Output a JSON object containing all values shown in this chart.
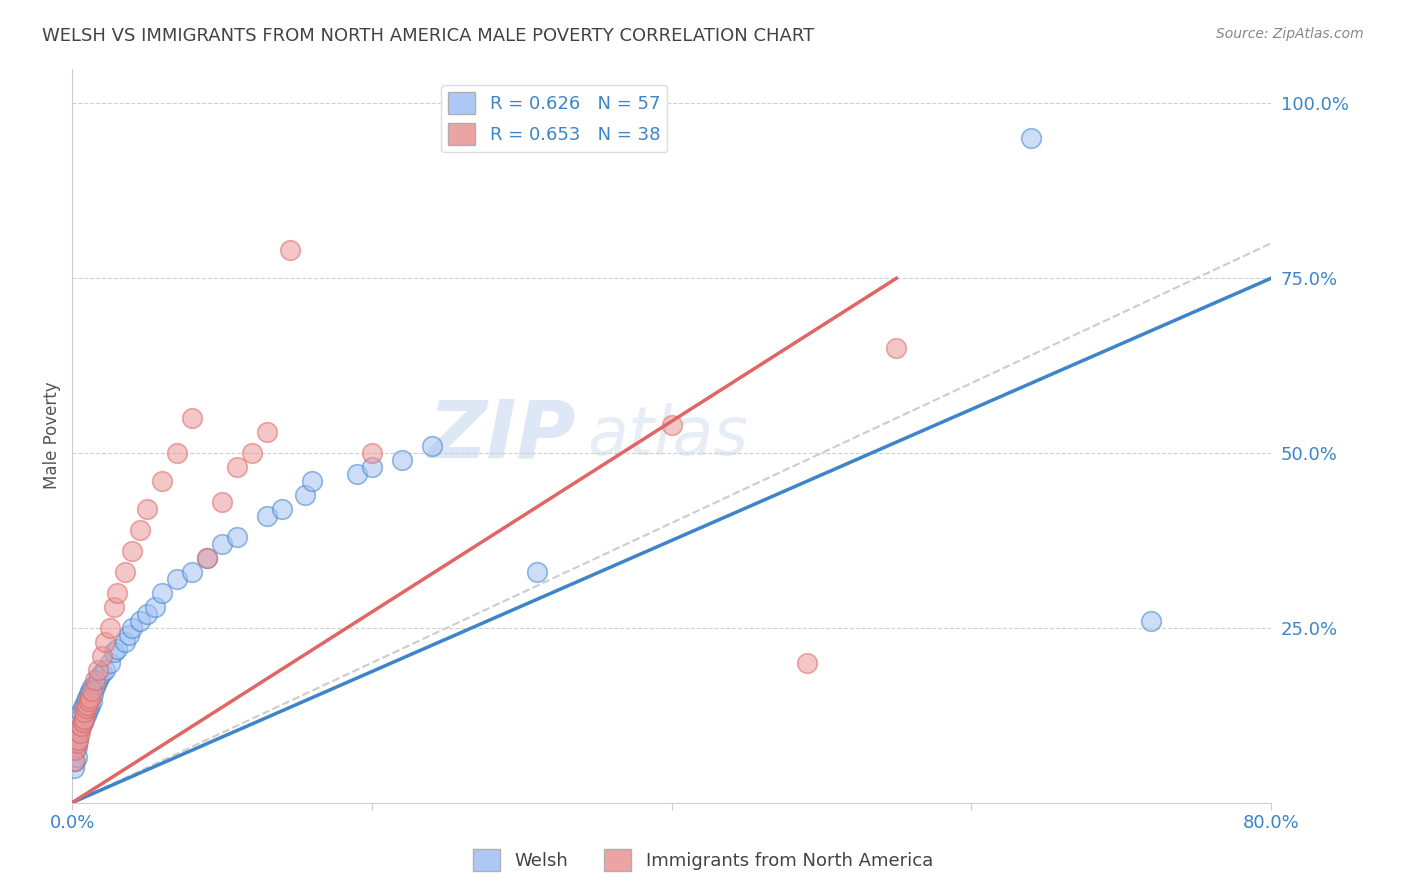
{
  "title": "WELSH VS IMMIGRANTS FROM NORTH AMERICA MALE POVERTY CORRELATION CHART",
  "source": "Source: ZipAtlas.com",
  "ylabel": "Male Poverty",
  "xlim": [
    0.0,
    0.8
  ],
  "ylim": [
    0.0,
    1.05
  ],
  "y_tick_labels": [
    "25.0%",
    "50.0%",
    "75.0%",
    "100.0%"
  ],
  "y_ticks": [
    0.25,
    0.5,
    0.75,
    1.0
  ],
  "blue_color": "#a4c2f4",
  "pink_color": "#ea9999",
  "blue_line_color": "#3d85c8",
  "pink_line_color": "#e06666",
  "diagonal_color": "#cccccc",
  "title_color": "#434343",
  "source_color": "#888888",
  "watermark": "ZIPatlas",
  "blue_line_x0": 0.0,
  "blue_line_y0": 0.0,
  "blue_line_x1": 0.8,
  "blue_line_y1": 0.75,
  "pink_line_x0": 0.0,
  "pink_line_y0": 0.0,
  "pink_line_x1": 0.55,
  "pink_line_y1": 0.75,
  "welsh_x": [
    0.001,
    0.002,
    0.003,
    0.003,
    0.004,
    0.004,
    0.005,
    0.005,
    0.006,
    0.006,
    0.007,
    0.007,
    0.008,
    0.008,
    0.009,
    0.009,
    0.01,
    0.01,
    0.011,
    0.011,
    0.012,
    0.012,
    0.013,
    0.013,
    0.014,
    0.015,
    0.016,
    0.017,
    0.018,
    0.02,
    0.022,
    0.025,
    0.028,
    0.03,
    0.035,
    0.038,
    0.04,
    0.045,
    0.05,
    0.055,
    0.06,
    0.07,
    0.08,
    0.09,
    0.1,
    0.11,
    0.13,
    0.14,
    0.155,
    0.16,
    0.19,
    0.2,
    0.22,
    0.24,
    0.31,
    0.64,
    0.72
  ],
  "welsh_y": [
    0.05,
    0.06,
    0.065,
    0.08,
    0.09,
    0.1,
    0.105,
    0.12,
    0.11,
    0.13,
    0.115,
    0.135,
    0.12,
    0.14,
    0.125,
    0.145,
    0.13,
    0.15,
    0.135,
    0.155,
    0.14,
    0.16,
    0.145,
    0.165,
    0.155,
    0.165,
    0.17,
    0.175,
    0.18,
    0.185,
    0.19,
    0.2,
    0.215,
    0.22,
    0.23,
    0.24,
    0.25,
    0.26,
    0.27,
    0.28,
    0.3,
    0.32,
    0.33,
    0.35,
    0.37,
    0.38,
    0.41,
    0.42,
    0.44,
    0.46,
    0.47,
    0.48,
    0.49,
    0.51,
    0.33,
    0.95,
    0.26
  ],
  "immig_x": [
    0.001,
    0.002,
    0.003,
    0.004,
    0.005,
    0.006,
    0.007,
    0.008,
    0.008,
    0.009,
    0.01,
    0.011,
    0.012,
    0.013,
    0.015,
    0.017,
    0.02,
    0.022,
    0.025,
    0.028,
    0.03,
    0.035,
    0.04,
    0.045,
    0.05,
    0.06,
    0.07,
    0.08,
    0.09,
    0.1,
    0.11,
    0.12,
    0.13,
    0.145,
    0.2,
    0.4,
    0.49,
    0.55
  ],
  "immig_y": [
    0.06,
    0.075,
    0.085,
    0.09,
    0.1,
    0.11,
    0.115,
    0.12,
    0.13,
    0.135,
    0.14,
    0.145,
    0.15,
    0.16,
    0.175,
    0.19,
    0.21,
    0.23,
    0.25,
    0.28,
    0.3,
    0.33,
    0.36,
    0.39,
    0.42,
    0.46,
    0.5,
    0.55,
    0.35,
    0.43,
    0.48,
    0.5,
    0.53,
    0.79,
    0.5,
    0.54,
    0.2,
    0.65
  ]
}
